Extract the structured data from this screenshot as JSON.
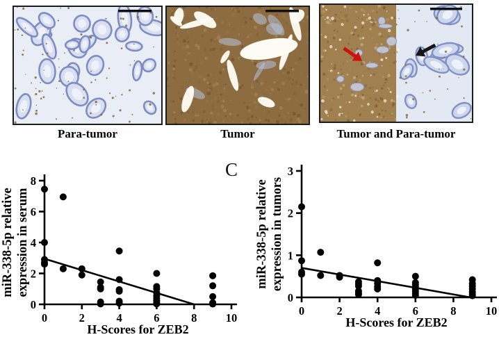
{
  "figure": {
    "section_label": "C",
    "panels": [
      {
        "label": "Para-tumor",
        "palette": {
          "bg": "#e9edf6",
          "gland_stroke": "#7e8cc2",
          "gland_fill": "#d7dff1",
          "lumen": "#eef1f9",
          "speckle": "#8a683c"
        }
      },
      {
        "label": "Tumor",
        "palette": {
          "bg": "#8d6c41",
          "dark": "#6f5026",
          "light": "#a98b5e",
          "lumen": "#fdfcf4",
          "stroma": "#b7c2dc"
        }
      },
      {
        "label": "Tumor and Para-tumor",
        "palette": {
          "left_bg": "#a1804f",
          "right_bg": "#e3e9f3",
          "gland_stroke": "#8290c4",
          "gland_fill": "#ccd6ec",
          "lumen": "#edf1f8",
          "arrow_red": "#cc1111",
          "arrow_black": "#161616"
        }
      }
    ]
  },
  "chart_data": [
    {
      "type": "scatter",
      "title": "",
      "xlabel": "H-Scores for ZEB2",
      "ylabel_lines": [
        "miR-338-5p relative",
        "expression in serum"
      ],
      "xlim": [
        0,
        10
      ],
      "ylim": [
        0,
        8
      ],
      "xticks": [
        0,
        2,
        4,
        6,
        8,
        10
      ],
      "yticks": [
        0,
        2,
        4,
        6,
        8
      ],
      "grid": false,
      "legend": false,
      "marker_color": "#000000",
      "points": [
        [
          0,
          7.45
        ],
        [
          0,
          4.0
        ],
        [
          0,
          2.9
        ],
        [
          0,
          2.7
        ],
        [
          0,
          2.6
        ],
        [
          1,
          6.95
        ],
        [
          1,
          2.3
        ],
        [
          2,
          2.3
        ],
        [
          2,
          1.9
        ],
        [
          3,
          1.45
        ],
        [
          3,
          1.1
        ],
        [
          3,
          1.0
        ],
        [
          3,
          0.15
        ],
        [
          3,
          0.03
        ],
        [
          4,
          3.45
        ],
        [
          4,
          1.6
        ],
        [
          4,
          0.95
        ],
        [
          4,
          0.85
        ],
        [
          4,
          0.2
        ],
        [
          4,
          0.08
        ],
        [
          6,
          2.0
        ],
        [
          6,
          1.15
        ],
        [
          6,
          1.0
        ],
        [
          6,
          0.75
        ],
        [
          6,
          0.55
        ],
        [
          6,
          0.4
        ],
        [
          6,
          0.25
        ],
        [
          6,
          0.1
        ],
        [
          6,
          0.03
        ],
        [
          9,
          1.85
        ],
        [
          9,
          1.2
        ],
        [
          9,
          0.5
        ],
        [
          9,
          0.1
        ],
        [
          9,
          0.02
        ]
      ],
      "trendline": {
        "x1": 0,
        "y1": 2.95,
        "x2": 8,
        "y2": 0
      }
    },
    {
      "type": "scatter",
      "title": "",
      "xlabel": "H-Scores for ZEB2",
      "ylabel_lines": [
        "miR-338-5p relative",
        "expression in tumors"
      ],
      "xlim": [
        0,
        10
      ],
      "ylim": [
        0,
        3
      ],
      "xticks": [
        0,
        2,
        4,
        6,
        8,
        10
      ],
      "yticks": [
        0,
        1,
        2,
        3
      ],
      "grid": false,
      "legend": false,
      "marker_color": "#000000",
      "points": [
        [
          0,
          2.15
        ],
        [
          0,
          0.87
        ],
        [
          0,
          0.6
        ],
        [
          0,
          0.55
        ],
        [
          1,
          1.07
        ],
        [
          1,
          0.52
        ],
        [
          2,
          0.52
        ],
        [
          2,
          0.48
        ],
        [
          3,
          0.37
        ],
        [
          3,
          0.32
        ],
        [
          3,
          0.27
        ],
        [
          3,
          0.15
        ],
        [
          3,
          0.1
        ],
        [
          3,
          0.07
        ],
        [
          4,
          0.82
        ],
        [
          4,
          0.4
        ],
        [
          4,
          0.33
        ],
        [
          4,
          0.25
        ],
        [
          4,
          0.2
        ],
        [
          6,
          0.5
        ],
        [
          6,
          0.35
        ],
        [
          6,
          0.3
        ],
        [
          6,
          0.25
        ],
        [
          6,
          0.2
        ],
        [
          6,
          0.15
        ],
        [
          6,
          0.1
        ],
        [
          6,
          0.05
        ],
        [
          9,
          0.42
        ],
        [
          9,
          0.33
        ],
        [
          9,
          0.27
        ],
        [
          9,
          0.2
        ],
        [
          9,
          0.13
        ],
        [
          9,
          0.08
        ],
        [
          9,
          0.04
        ]
      ],
      "trendline": {
        "x1": 0,
        "y1": 0.7,
        "x2": 8.9,
        "y2": 0
      }
    }
  ]
}
